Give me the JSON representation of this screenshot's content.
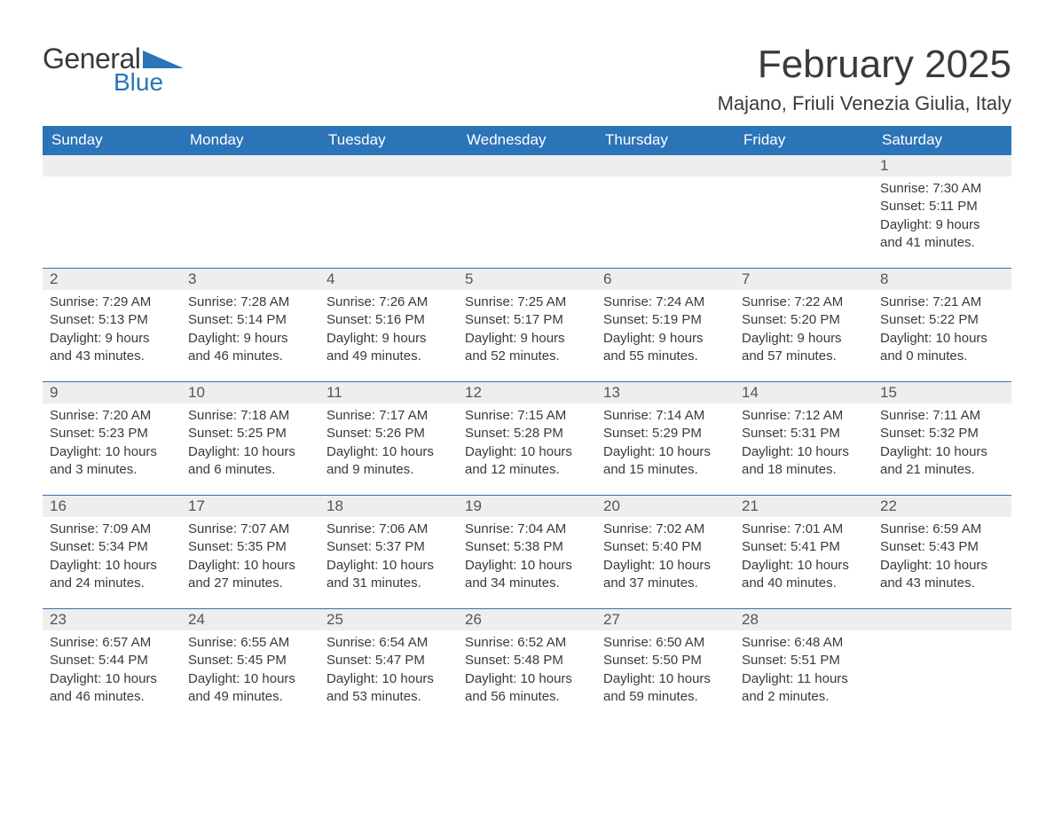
{
  "logo": {
    "word1": "General",
    "word2": "Blue",
    "accent_color": "#2b74b8"
  },
  "header": {
    "month_title": "February 2025",
    "location": "Majano, Friuli Venezia Giulia, Italy"
  },
  "colors": {
    "header_bg": "#2b74b8",
    "header_text": "#ffffff",
    "daynum_bg": "#eeeeee",
    "cell_border_top": "#2b74b8",
    "body_text": "#3a3a3a"
  },
  "weekdays": [
    "Sunday",
    "Monday",
    "Tuesday",
    "Wednesday",
    "Thursday",
    "Friday",
    "Saturday"
  ],
  "labels": {
    "sunrise": "Sunrise",
    "sunset": "Sunset",
    "daylight": "Daylight"
  },
  "weeks": [
    [
      null,
      null,
      null,
      null,
      null,
      null,
      {
        "day": "1",
        "sunrise": "7:30 AM",
        "sunset": "5:11 PM",
        "daylight": "9 hours and 41 minutes."
      }
    ],
    [
      {
        "day": "2",
        "sunrise": "7:29 AM",
        "sunset": "5:13 PM",
        "daylight": "9 hours and 43 minutes."
      },
      {
        "day": "3",
        "sunrise": "7:28 AM",
        "sunset": "5:14 PM",
        "daylight": "9 hours and 46 minutes."
      },
      {
        "day": "4",
        "sunrise": "7:26 AM",
        "sunset": "5:16 PM",
        "daylight": "9 hours and 49 minutes."
      },
      {
        "day": "5",
        "sunrise": "7:25 AM",
        "sunset": "5:17 PM",
        "daylight": "9 hours and 52 minutes."
      },
      {
        "day": "6",
        "sunrise": "7:24 AM",
        "sunset": "5:19 PM",
        "daylight": "9 hours and 55 minutes."
      },
      {
        "day": "7",
        "sunrise": "7:22 AM",
        "sunset": "5:20 PM",
        "daylight": "9 hours and 57 minutes."
      },
      {
        "day": "8",
        "sunrise": "7:21 AM",
        "sunset": "5:22 PM",
        "daylight": "10 hours and 0 minutes."
      }
    ],
    [
      {
        "day": "9",
        "sunrise": "7:20 AM",
        "sunset": "5:23 PM",
        "daylight": "10 hours and 3 minutes."
      },
      {
        "day": "10",
        "sunrise": "7:18 AM",
        "sunset": "5:25 PM",
        "daylight": "10 hours and 6 minutes."
      },
      {
        "day": "11",
        "sunrise": "7:17 AM",
        "sunset": "5:26 PM",
        "daylight": "10 hours and 9 minutes."
      },
      {
        "day": "12",
        "sunrise": "7:15 AM",
        "sunset": "5:28 PM",
        "daylight": "10 hours and 12 minutes."
      },
      {
        "day": "13",
        "sunrise": "7:14 AM",
        "sunset": "5:29 PM",
        "daylight": "10 hours and 15 minutes."
      },
      {
        "day": "14",
        "sunrise": "7:12 AM",
        "sunset": "5:31 PM",
        "daylight": "10 hours and 18 minutes."
      },
      {
        "day": "15",
        "sunrise": "7:11 AM",
        "sunset": "5:32 PM",
        "daylight": "10 hours and 21 minutes."
      }
    ],
    [
      {
        "day": "16",
        "sunrise": "7:09 AM",
        "sunset": "5:34 PM",
        "daylight": "10 hours and 24 minutes."
      },
      {
        "day": "17",
        "sunrise": "7:07 AM",
        "sunset": "5:35 PM",
        "daylight": "10 hours and 27 minutes."
      },
      {
        "day": "18",
        "sunrise": "7:06 AM",
        "sunset": "5:37 PM",
        "daylight": "10 hours and 31 minutes."
      },
      {
        "day": "19",
        "sunrise": "7:04 AM",
        "sunset": "5:38 PM",
        "daylight": "10 hours and 34 minutes."
      },
      {
        "day": "20",
        "sunrise": "7:02 AM",
        "sunset": "5:40 PM",
        "daylight": "10 hours and 37 minutes."
      },
      {
        "day": "21",
        "sunrise": "7:01 AM",
        "sunset": "5:41 PM",
        "daylight": "10 hours and 40 minutes."
      },
      {
        "day": "22",
        "sunrise": "6:59 AM",
        "sunset": "5:43 PM",
        "daylight": "10 hours and 43 minutes."
      }
    ],
    [
      {
        "day": "23",
        "sunrise": "6:57 AM",
        "sunset": "5:44 PM",
        "daylight": "10 hours and 46 minutes."
      },
      {
        "day": "24",
        "sunrise": "6:55 AM",
        "sunset": "5:45 PM",
        "daylight": "10 hours and 49 minutes."
      },
      {
        "day": "25",
        "sunrise": "6:54 AM",
        "sunset": "5:47 PM",
        "daylight": "10 hours and 53 minutes."
      },
      {
        "day": "26",
        "sunrise": "6:52 AM",
        "sunset": "5:48 PM",
        "daylight": "10 hours and 56 minutes."
      },
      {
        "day": "27",
        "sunrise": "6:50 AM",
        "sunset": "5:50 PM",
        "daylight": "10 hours and 59 minutes."
      },
      {
        "day": "28",
        "sunrise": "6:48 AM",
        "sunset": "5:51 PM",
        "daylight": "11 hours and 2 minutes."
      },
      null
    ]
  ]
}
